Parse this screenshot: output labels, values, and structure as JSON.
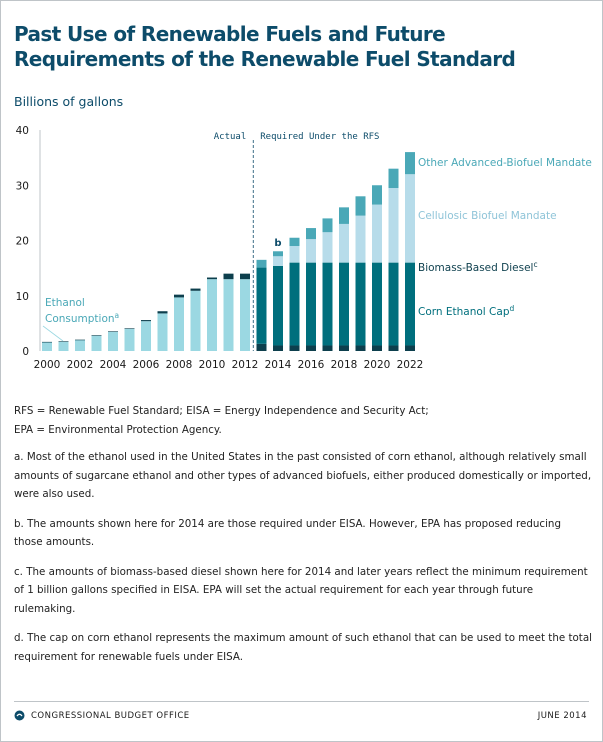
{
  "title": "Past Use of Renewable Fuels and Future Requirements of the Renewable Fuel Standard",
  "units_label": "Billions of gallons",
  "colors": {
    "past_ethanol": "#9bd8e2",
    "biomass_diesel": "#0d3f4d",
    "corn_ethanol": "#006f7d",
    "cellulosic": "#b7dcea",
    "other_advanced": "#4aa8b7",
    "title": "#0d4c6a"
  },
  "chart_data": {
    "type": "bar",
    "stacked": true,
    "title": "Past Use of Renewable Fuels and Future Requirements of the Renewable Fuel Standard",
    "ylabel": "Billions of gallons",
    "ylim": [
      0,
      40
    ],
    "yticks": [
      "0",
      "10",
      "20",
      "30",
      "40"
    ],
    "categories": [
      "2000",
      "2001",
      "2002",
      "2003",
      "2004",
      "2005",
      "2006",
      "2007",
      "2008",
      "2009",
      "2010",
      "2011",
      "2012",
      "2013",
      "2014",
      "2015",
      "2016",
      "2017",
      "2018",
      "2019",
      "2020",
      "2021",
      "2022"
    ],
    "xtick_labels": [
      "2000",
      "2002",
      "2004",
      "2006",
      "2008",
      "2010",
      "2012",
      "2014",
      "2016",
      "2018",
      "2020",
      "2022"
    ],
    "region_labels": {
      "actual": "Actual",
      "required": "Required Under the RFS"
    },
    "bar_annotations": [
      {
        "category": "2014",
        "text": "b"
      }
    ],
    "series": [
      {
        "name": "Ethanol Consumption",
        "superscript": "a",
        "color_key": "past_ethanol",
        "values": [
          1.6,
          1.7,
          2.0,
          2.8,
          3.5,
          4.0,
          5.4,
          6.8,
          9.7,
          10.9,
          13.0,
          13.0,
          13.0,
          null,
          null,
          null,
          null,
          null,
          null,
          null,
          null,
          null,
          null
        ]
      },
      {
        "name": "Biomass-Based Diesel",
        "superscript": "c",
        "color_key": "biomass_diesel",
        "values": [
          0.05,
          0.05,
          0.05,
          0.05,
          0.05,
          0.1,
          0.2,
          0.4,
          0.5,
          0.4,
          0.3,
          1.0,
          1.0,
          1.3,
          1.0,
          1.0,
          1.0,
          1.0,
          1.0,
          1.0,
          1.0,
          1.0,
          1.0
        ]
      },
      {
        "name": "Corn Ethanol Cap",
        "superscript": "d",
        "color_key": "corn_ethanol",
        "values": [
          null,
          null,
          null,
          null,
          null,
          null,
          null,
          null,
          null,
          null,
          null,
          null,
          null,
          13.8,
          14.4,
          15.0,
          15.0,
          15.0,
          15.0,
          15.0,
          15.0,
          15.0,
          15.0
        ]
      },
      {
        "name": "Cellulosic Biofuel Mandate",
        "superscript": "",
        "color_key": "cellulosic",
        "values": [
          null,
          null,
          null,
          null,
          null,
          null,
          null,
          null,
          null,
          null,
          null,
          null,
          null,
          0.0,
          1.75,
          3.0,
          4.25,
          5.5,
          7.0,
          8.5,
          10.5,
          13.5,
          16.0
        ]
      },
      {
        "name": "Other Advanced-Biofuel Mandate",
        "superscript": "",
        "color_key": "other_advanced",
        "values": [
          null,
          null,
          null,
          null,
          null,
          null,
          null,
          null,
          null,
          null,
          null,
          null,
          null,
          1.4,
          0.9,
          1.5,
          2.0,
          2.5,
          3.0,
          3.5,
          3.5,
          3.5,
          4.0
        ]
      }
    ]
  },
  "notes": {
    "abbreviations_line1": "RFS = Renewable Fuel Standard; EISA = Energy Independence and Security Act;",
    "abbreviations_line2": "EPA = Environmental Protection Agency.",
    "note_a": "a. Most of the ethanol used in the United States in the past consisted of corn ethanol, although relatively small amounts of sugarcane ethanol and other types of advanced biofuels, either produced domestically or imported, were also used.",
    "note_b": "b. The amounts shown here for 2014 are those required under EISA. However, EPA has proposed reducing those amounts.",
    "note_c": "c. The amounts of biomass-based diesel shown here for 2014 and later years reflect the minimum requirement of 1 billion gallons specified in EISA. EPA will set the actual requirement for each year through future rulemaking.",
    "note_d": "d. The cap on corn ethanol represents the maximum amount of such ethanol that can be used to meet the total requirement for renewable fuels under EISA."
  },
  "footer": {
    "org": "CONGRESSIONAL BUDGET OFFICE",
    "date": "JUNE 2014",
    "logo_icon": "cbo-logo-icon"
  }
}
